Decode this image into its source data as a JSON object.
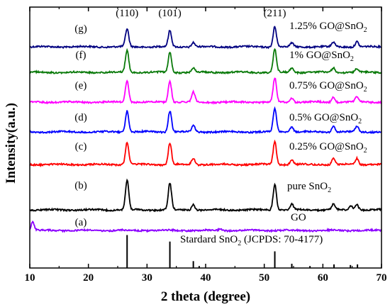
{
  "chart_data": {
    "type": "line",
    "xlabel": "2 theta (degree)",
    "ylabel": "Intensity(a.u.)",
    "xlim": [
      10,
      70
    ],
    "x_ticks": [
      10,
      20,
      30,
      40,
      50,
      60,
      70
    ],
    "y_ticks": "none",
    "grid": false,
    "peak_labels": [
      {
        "text": "(110)",
        "x": 26.6
      },
      {
        "text": "(101)",
        "x": 33.9
      },
      {
        "text": "(211)",
        "x": 51.8
      }
    ],
    "series": [
      {
        "letter": "(g)",
        "name": "1.25% GO@SnO",
        "sub": "2",
        "color": "#000080",
        "peaks": [
          [
            26.6,
            1.0
          ],
          [
            33.9,
            0.9
          ],
          [
            37.9,
            0.25
          ],
          [
            51.8,
            1.15
          ],
          [
            54.7,
            0.2
          ],
          [
            61.8,
            0.25
          ],
          [
            65.8,
            0.3
          ]
        ]
      },
      {
        "letter": "(f)",
        "name": "1% GO@SnO",
        "sub": "2",
        "color": "#0a7a0a",
        "peaks": [
          [
            26.6,
            1.25
          ],
          [
            33.9,
            1.15
          ],
          [
            37.9,
            0.25
          ],
          [
            51.8,
            1.3
          ],
          [
            54.7,
            0.25
          ],
          [
            61.8,
            0.25
          ],
          [
            65.8,
            0.2
          ]
        ]
      },
      {
        "letter": "(e)",
        "name": "0.75% GO@SnO",
        "sub": "2",
        "color": "#ff00ff",
        "peaks": [
          [
            26.6,
            1.2
          ],
          [
            33.9,
            1.2
          ],
          [
            37.9,
            0.55
          ],
          [
            51.8,
            1.35
          ],
          [
            54.7,
            0.25
          ],
          [
            61.8,
            0.3
          ],
          [
            65.8,
            0.3
          ]
        ]
      },
      {
        "letter": "(d)",
        "name": "0.5% GO@SnO",
        "sub": "2",
        "color": "#0000ff",
        "peaks": [
          [
            26.6,
            1.2
          ],
          [
            33.9,
            1.2
          ],
          [
            37.9,
            0.35
          ],
          [
            51.8,
            1.3
          ],
          [
            54.7,
            0.3
          ],
          [
            61.8,
            0.35
          ],
          [
            65.8,
            0.3
          ]
        ]
      },
      {
        "letter": "(c)",
        "name": "0.25% GO@SnO",
        "sub": "2",
        "color": "#ff0000",
        "peaks": [
          [
            26.6,
            1.25
          ],
          [
            33.9,
            1.2
          ],
          [
            37.9,
            0.35
          ],
          [
            51.8,
            1.3
          ],
          [
            54.7,
            0.25
          ],
          [
            61.8,
            0.35
          ],
          [
            65.8,
            0.35
          ]
        ]
      },
      {
        "letter": "(b)",
        "name": "pure SnO",
        "sub": "2",
        "color": "#000000",
        "peaks": [
          [
            26.6,
            1.9
          ],
          [
            33.9,
            1.7
          ],
          [
            37.9,
            0.35
          ],
          [
            51.8,
            1.65
          ],
          [
            54.7,
            0.35
          ],
          [
            61.8,
            0.35
          ],
          [
            64.8,
            0.25
          ],
          [
            65.8,
            0.35
          ]
        ]
      },
      {
        "letter": "(a)",
        "name": "GO",
        "sub": "",
        "color": "#8b00ff",
        "peaks": [
          [
            10.5,
            1.0
          ],
          [
            42.5,
            0.15
          ]
        ]
      }
    ],
    "reference": {
      "name": "Stardard SnO",
      "sub": "2",
      "suffix": " (JCPDS: 70-4177)",
      "sticks": [
        [
          26.6,
          1.0
        ],
        [
          33.9,
          0.8
        ],
        [
          37.9,
          0.2
        ],
        [
          38.9,
          0.05
        ],
        [
          51.8,
          0.5
        ],
        [
          54.7,
          0.12
        ],
        [
          57.8,
          0.05
        ],
        [
          61.9,
          0.1
        ],
        [
          64.7,
          0.08
        ],
        [
          65.9,
          0.1
        ]
      ]
    }
  }
}
